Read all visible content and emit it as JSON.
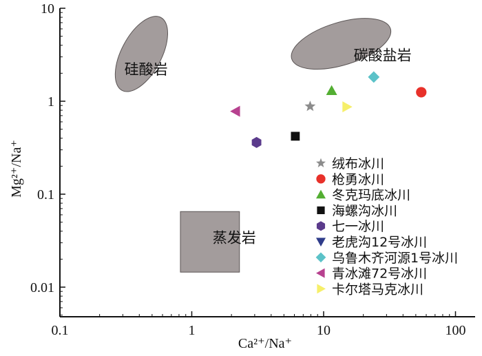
{
  "chart_data": {
    "type": "scatter",
    "title": "",
    "xlabel": "Ca²⁺/Na⁺",
    "ylabel": "Mg²⁺/Na⁺",
    "xscale": "log",
    "yscale": "log",
    "xlim": [
      0.1,
      120
    ],
    "ylim": [
      0.004,
      10
    ],
    "grid": false,
    "legend_position": "bottom-right",
    "x_ticks": [
      {
        "value": 0.1,
        "label": "0.1"
      },
      {
        "value": 1,
        "label": "1"
      },
      {
        "value": 10,
        "label": "10"
      },
      {
        "value": 100,
        "label": "100"
      }
    ],
    "y_ticks": [
      {
        "value": 0.01,
        "label": "0.01"
      },
      {
        "value": 0.1,
        "label": "0.1"
      },
      {
        "value": 1,
        "label": "1"
      },
      {
        "value": 10,
        "label": "10"
      }
    ],
    "regions": [
      {
        "label": "硅酸岩",
        "shape": "ellipse",
        "color": "#a39c9c",
        "label_at": [
          0.45,
          2.2
        ],
        "x_range": [
          0.23,
          0.75
        ],
        "y_range": [
          1.3,
          8.0
        ]
      },
      {
        "label": "碳酸盐岩",
        "shape": "ellipse",
        "color": "#a39c9c",
        "label_at": [
          28,
          3.1
        ],
        "x_range": [
          4.6,
          40
        ],
        "y_range": [
          2.0,
          8.6
        ]
      },
      {
        "label": "蒸发岩",
        "shape": "rect",
        "color": "#a39c9c",
        "label_at": [
          2.1,
          0.034
        ],
        "x_range": [
          0.82,
          2.3
        ],
        "y_range": [
          0.0145,
          0.065
        ]
      }
    ],
    "series": [
      {
        "name": "绒布冰川",
        "marker": "star",
        "color": "#8c8c8c",
        "x": [
          7.9
        ],
        "y": [
          0.88
        ]
      },
      {
        "name": "枪勇冰川",
        "marker": "circle",
        "color": "#e8312a",
        "x": [
          55
        ],
        "y": [
          1.25
        ]
      },
      {
        "name": "冬克玛底冰川",
        "marker": "triangle-up",
        "color": "#53ae32",
        "x": [
          11.5
        ],
        "y": [
          1.3
        ]
      },
      {
        "name": "海螺沟冰川",
        "marker": "square",
        "color": "#111111",
        "x": [
          6.1
        ],
        "y": [
          0.42
        ]
      },
      {
        "name": "七一冰川",
        "marker": "hexagon",
        "color": "#5b3b8c",
        "x": [
          3.1
        ],
        "y": [
          0.36
        ]
      },
      {
        "name": "老虎沟12号冰川",
        "marker": "triangle-down",
        "color": "#2f3c8a",
        "x": [],
        "y": []
      },
      {
        "name": "乌鲁木齐河源1号冰川",
        "marker": "diamond",
        "color": "#5bc2c8",
        "x": [
          24
        ],
        "y": [
          1.82
        ]
      },
      {
        "name": "青冰滩72号冰川",
        "marker": "triangle-left",
        "color": "#b7418f",
        "x": [
          2.15
        ],
        "y": [
          0.78
        ]
      },
      {
        "name": "卡尔塔马克冰川",
        "marker": "triangle-right",
        "color": "#f6ef6a",
        "x": [
          15
        ],
        "y": [
          0.87
        ]
      }
    ]
  }
}
